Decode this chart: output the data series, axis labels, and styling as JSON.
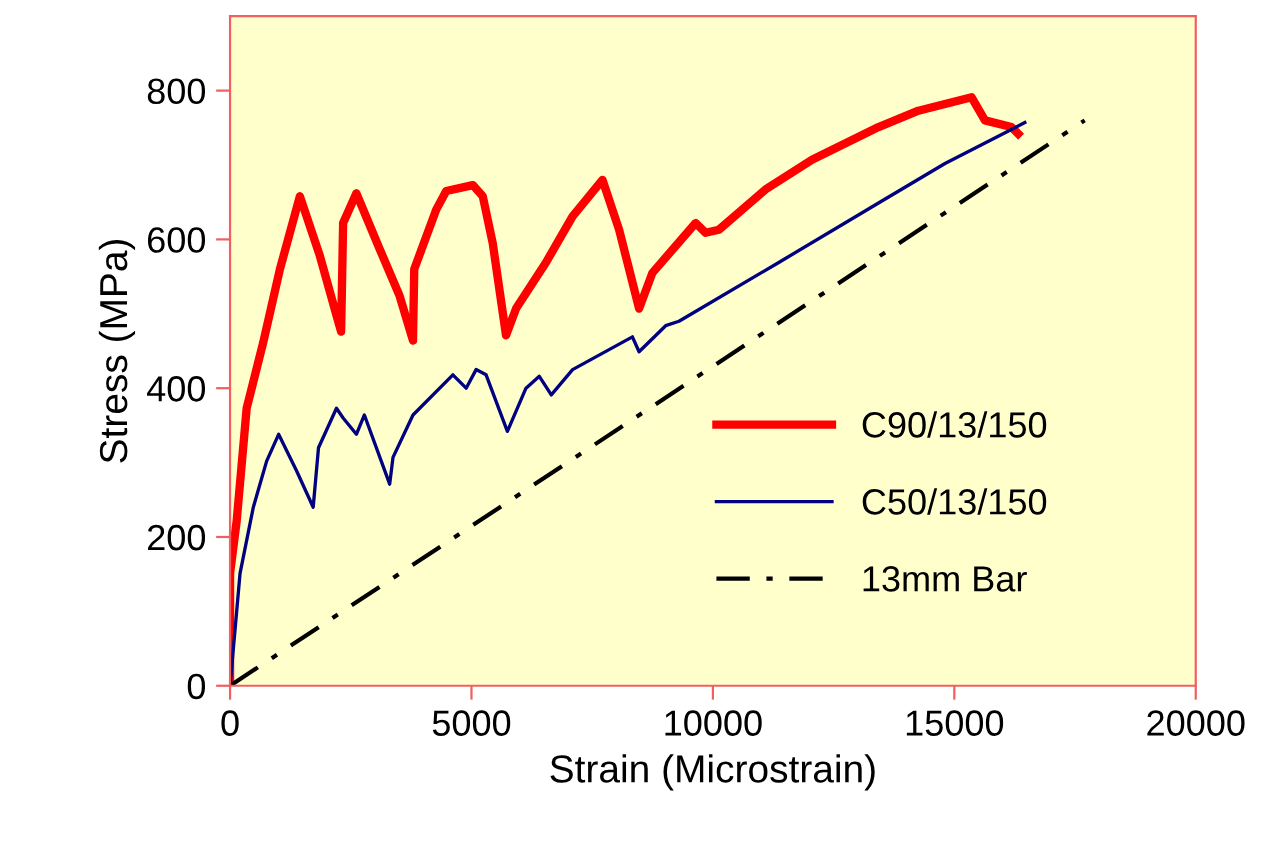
{
  "chart_data": {
    "type": "line",
    "xlabel": "Strain (Microstrain)",
    "ylabel": "Stress (MPa)",
    "xlim": [
      0,
      20000
    ],
    "ylim": [
      0,
      900
    ],
    "xticks": [
      0,
      5000,
      10000,
      15000,
      20000
    ],
    "yticks": [
      0,
      200,
      400,
      600,
      800
    ],
    "grid": false,
    "legend": "right",
    "marker": "none",
    "series": [
      {
        "name": "C90/13/150",
        "color": "#ff0000",
        "line_style": "solid",
        "x": [
          0,
          0,
          138,
          344,
          689,
          1033,
          1446,
          1860,
          2204,
          2300,
          2342,
          2617,
          3099,
          3512,
          3789,
          3815,
          4270,
          4477,
          5028,
          5234,
          5440,
          5716,
          5923,
          6543,
          7094,
          7713,
          8058,
          8471,
          8747,
          9642,
          9848,
          10124,
          11087,
          12053,
          13430,
          14256,
          15358,
          15634,
          16185,
          16322
        ],
        "values": [
          0,
          151,
          222,
          373,
          462,
          560,
          658,
          578,
          498,
          476,
          622,
          662,
          587,
          524,
          464,
          560,
          640,
          665,
          673,
          658,
          595,
          471,
          507,
          569,
          631,
          680,
          613,
          507,
          555,
          622,
          609,
          613,
          667,
          707,
          751,
          773,
          791,
          760,
          751,
          742
        ]
      },
      {
        "name": "C50/13/150",
        "color": "#000080",
        "line_style": "solid",
        "x": [
          0,
          207,
          482,
          758,
          1006,
          1377,
          1722,
          1832,
          2204,
          2342,
          2617,
          2782,
          3306,
          3375,
          3789,
          4615,
          4890,
          5096,
          5303,
          5744,
          6129,
          6405,
          6653,
          7094,
          8333,
          8471,
          9022,
          9298,
          11364,
          13430,
          14807,
          16460
        ],
        "values": [
          0,
          151,
          240,
          302,
          338,
          289,
          240,
          320,
          373,
          360,
          338,
          364,
          271,
          307,
          364,
          418,
          400,
          425,
          418,
          342,
          400,
          416,
          391,
          425,
          469,
          449,
          484,
          490,
          569,
          649,
          702,
          757
        ]
      },
      {
        "name": "13mm Bar",
        "color": "#000000",
        "line_style": "dashdot",
        "x": [
          0,
          17700
        ],
        "values": [
          0,
          760
        ]
      }
    ]
  }
}
